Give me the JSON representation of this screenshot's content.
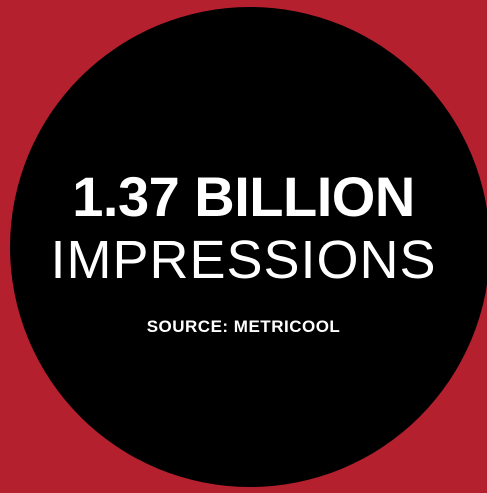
{
  "colors": {
    "background": "#B5202E",
    "circle": "#000000",
    "text": "#FFFFFF"
  },
  "stat": {
    "headline": "1.37 BILLION",
    "subline": "IMPRESSIONS",
    "source": "SOURCE: METRICOOL"
  }
}
